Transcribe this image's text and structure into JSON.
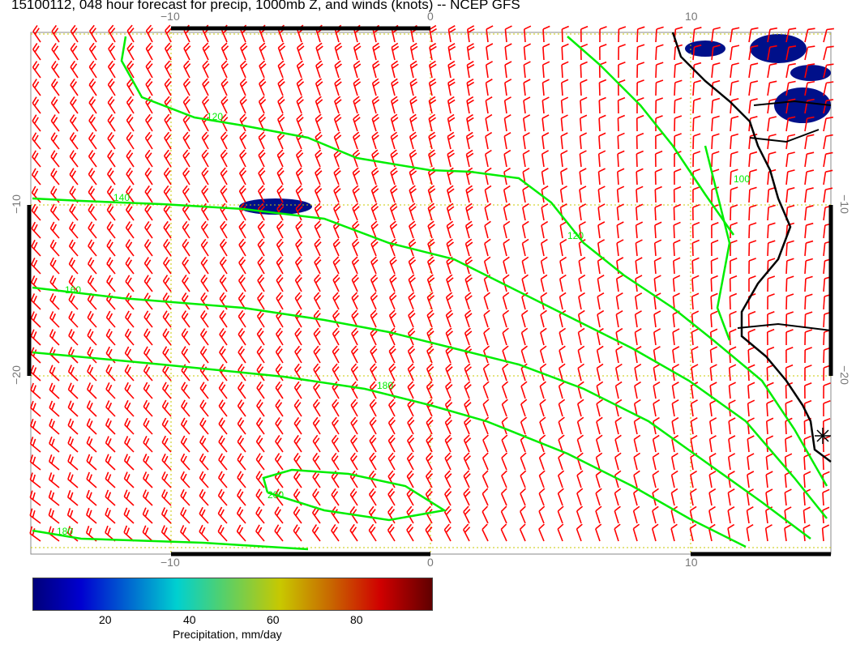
{
  "title": "15100112, 048 hour forecast for precip, 1000mb Z, and winds (knots) -- NCEP GFS",
  "axes": {
    "lon_ticks": [
      "−10",
      "0",
      "10"
    ],
    "lat_ticks": [
      "−10",
      "−20"
    ]
  },
  "contours": {
    "color": "#00ee00",
    "labels": [
      "120",
      "140",
      "160",
      "180",
      "200",
      "180",
      "100",
      "120"
    ]
  },
  "wind_barb_color": "#ff0000",
  "coastline_color": "#000000",
  "colorbar": {
    "label": "Precipitation, mm/day",
    "ticks": [
      "20",
      "40",
      "60",
      "80"
    ],
    "range": [
      0,
      100
    ]
  }
}
